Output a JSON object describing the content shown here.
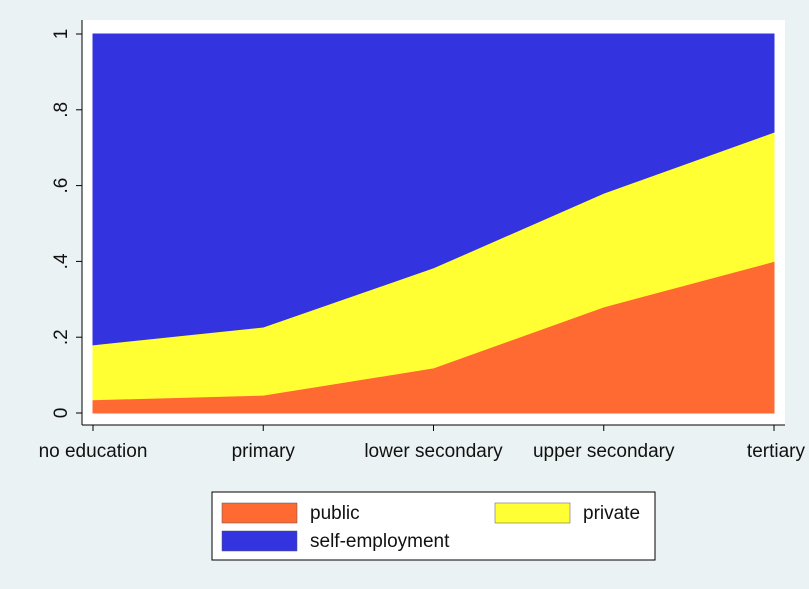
{
  "chart_data": {
    "type": "stacked_area",
    "categories": [
      "no education",
      "primary",
      "lower secondary",
      "upper secondary",
      "tertiary"
    ],
    "series": [
      {
        "name": "public",
        "color": "#ff6a33",
        "values": [
          0.035,
          0.047,
          0.119,
          0.28,
          0.4
        ]
      },
      {
        "name": "private",
        "color": "#ffff33",
        "values": [
          0.145,
          0.18,
          0.264,
          0.3,
          0.341
        ]
      },
      {
        "name": "self-employment",
        "color": "#3333e0",
        "values": [
          0.82,
          0.773,
          0.617,
          0.42,
          0.259
        ]
      }
    ],
    "ylim": [
      0,
      1
    ],
    "yticks": [
      0,
      {
        "value": 0.2,
        "label": ".2"
      },
      {
        "value": 0.4,
        "label": ".4"
      },
      {
        "value": 0.6,
        "label": ".6"
      },
      {
        "value": 0.8,
        "label": ".8"
      },
      1
    ],
    "grid": false,
    "legend": "bottom"
  }
}
